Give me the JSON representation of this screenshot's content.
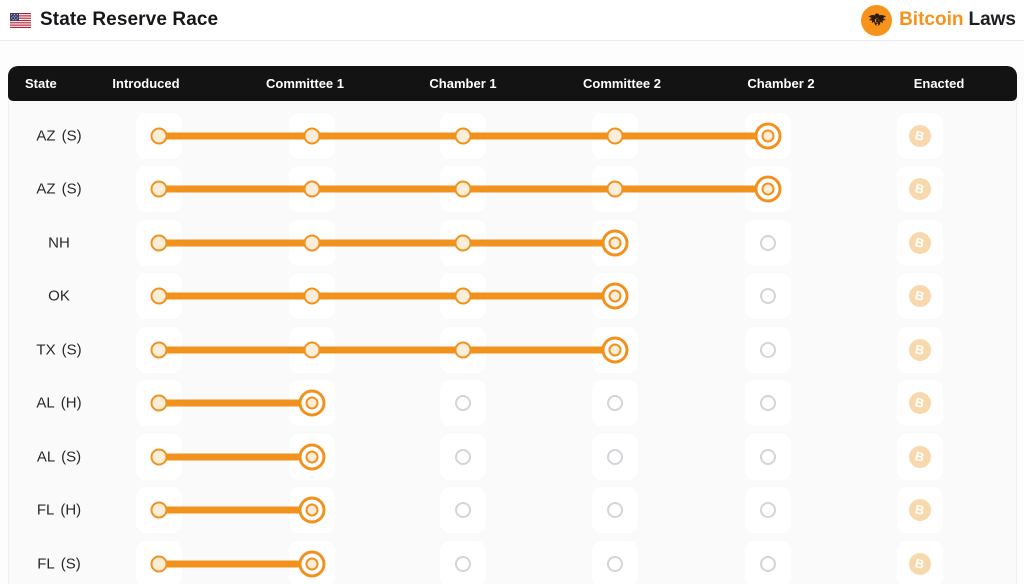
{
  "header": {
    "flag_icon": "us-flag-icon",
    "title": "State Reserve Race",
    "brand": {
      "logo_icon": "eagle-seal-icon",
      "bitcoin": "Bitcoin",
      "laws": "Laws"
    }
  },
  "table": {
    "columns": [
      "State",
      "Introduced",
      "Committee 1",
      "Chamber 1",
      "Committee 2",
      "Chamber 2",
      "Enacted"
    ],
    "stages": [
      "Introduced",
      "Committee 1",
      "Chamber 1",
      "Committee 2",
      "Chamber 2"
    ],
    "enacted_badge_glyph": "B",
    "rows": [
      {
        "state": "AZ",
        "chamber": "(S)",
        "current_stage": "Chamber 2",
        "stage_index": 4,
        "enacted": false
      },
      {
        "state": "AZ",
        "chamber": "(S)",
        "current_stage": "Chamber 2",
        "stage_index": 4,
        "enacted": false
      },
      {
        "state": "NH",
        "chamber": "",
        "current_stage": "Committee 2",
        "stage_index": 3,
        "enacted": false
      },
      {
        "state": "OK",
        "chamber": "",
        "current_stage": "Committee 2",
        "stage_index": 3,
        "enacted": false
      },
      {
        "state": "TX",
        "chamber": "(S)",
        "current_stage": "Committee 2",
        "stage_index": 3,
        "enacted": false
      },
      {
        "state": "AL",
        "chamber": "(H)",
        "current_stage": "Committee 1",
        "stage_index": 1,
        "enacted": false
      },
      {
        "state": "AL",
        "chamber": "(S)",
        "current_stage": "Committee 1",
        "stage_index": 1,
        "enacted": false
      },
      {
        "state": "FL",
        "chamber": "(H)",
        "current_stage": "Committee 1",
        "stage_index": 1,
        "enacted": false
      },
      {
        "state": "FL",
        "chamber": "(S)",
        "current_stage": "Committee 1",
        "stage_index": 1,
        "enacted": false
      }
    ]
  },
  "colors": {
    "progress_orange": "#f1921e",
    "dot_cream": "#fbeed8",
    "pending_gray": "#d4d4d9",
    "badge_faded_orange": "#f7d9ad",
    "brand_orange": "#f7931a",
    "header_bar_black": "#131313"
  }
}
